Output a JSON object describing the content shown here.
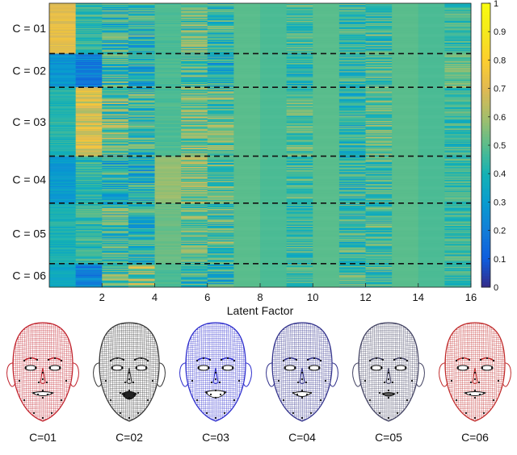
{
  "chart_data": {
    "type": "heatmap",
    "xlabel": "Latent Factor",
    "ylabel": "",
    "title": "",
    "x_range": [
      0,
      16
    ],
    "x_ticks": [
      "2",
      "4",
      "6",
      "8",
      "10",
      "12",
      "14",
      "16"
    ],
    "row_groups": [
      {
        "label": "C = 01",
        "rows": 60
      },
      {
        "label": "C = 02",
        "rows": 40
      },
      {
        "label": "C = 03",
        "rows": 82
      },
      {
        "label": "C = 04",
        "rows": 56
      },
      {
        "label": "C = 05",
        "rows": 72
      },
      {
        "label": "C = 06",
        "rows": 28
      }
    ],
    "colorbar": {
      "range": [
        0,
        1
      ],
      "ticks": [
        "0",
        "0.1",
        "0.2",
        "0.3",
        "0.4",
        "0.5",
        "0.6",
        "0.7",
        "0.8",
        "0.9",
        "1"
      ],
      "colormap": "parula"
    },
    "group_factor_means": [
      [
        0.72,
        0.45,
        0.42,
        0.4,
        0.48,
        0.5,
        0.45,
        0.5,
        0.48,
        0.46,
        0.5,
        0.46,
        0.46,
        0.5,
        0.48,
        0.45
      ],
      [
        0.28,
        0.22,
        0.42,
        0.4,
        0.48,
        0.45,
        0.38,
        0.5,
        0.48,
        0.42,
        0.5,
        0.45,
        0.46,
        0.5,
        0.48,
        0.52
      ],
      [
        0.42,
        0.68,
        0.5,
        0.45,
        0.48,
        0.52,
        0.5,
        0.5,
        0.48,
        0.48,
        0.5,
        0.42,
        0.5,
        0.5,
        0.48,
        0.45
      ],
      [
        0.3,
        0.42,
        0.4,
        0.38,
        0.58,
        0.55,
        0.48,
        0.5,
        0.48,
        0.46,
        0.5,
        0.42,
        0.46,
        0.5,
        0.48,
        0.45
      ],
      [
        0.4,
        0.45,
        0.45,
        0.42,
        0.52,
        0.5,
        0.48,
        0.5,
        0.48,
        0.46,
        0.5,
        0.45,
        0.46,
        0.5,
        0.48,
        0.45
      ],
      [
        0.35,
        0.22,
        0.5,
        0.55,
        0.48,
        0.42,
        0.4,
        0.5,
        0.48,
        0.46,
        0.5,
        0.48,
        0.46,
        0.5,
        0.48,
        0.45
      ]
    ],
    "factor_variability": [
      0.05,
      0.1,
      0.18,
      0.18,
      0.02,
      0.16,
      0.16,
      0.0,
      0.0,
      0.12,
      0.0,
      0.14,
      0.14,
      0.0,
      0.0,
      0.1
    ],
    "separators": "dashed black lines between groups"
  },
  "faces": {
    "captions": [
      "C=01",
      "C=02",
      "C=03",
      "C=04",
      "C=05",
      "C=06"
    ],
    "colors": [
      "#c0202a",
      "#333333",
      "#2a2acc",
      "#30308a",
      "#404060",
      "#c02a2a"
    ],
    "expressions": [
      "smile-wide",
      "open-mouth",
      "big-smile",
      "smile",
      "neutral-open",
      "smile-wide"
    ]
  }
}
